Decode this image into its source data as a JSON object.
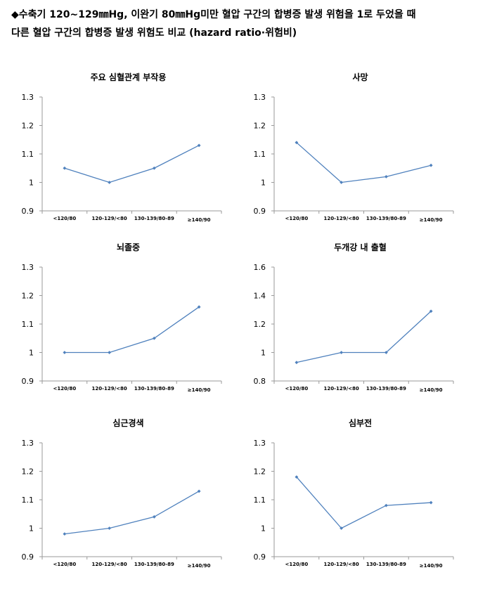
{
  "header": {
    "line1": "◆수축기 120~129㎜Hg, 이완기 80㎜Hg미만 혈압 구간의 합병증 발생 위험을 1로 두었을 때",
    "line2": "다른 혈압 구간의 합병증 발생 위험도 비교 (hazard ratio·위험비)"
  },
  "series_color": "#4f81bd",
  "chart_data": [
    {
      "type": "line",
      "title": "주요 심혈관계 부작용",
      "categories": [
        "<120/80",
        "120-129/<80",
        "130-139/80-89",
        "≥140/90"
      ],
      "values": [
        1.05,
        1.0,
        1.05,
        1.13
      ],
      "yticks": [
        "1.3",
        "1.2",
        "1.1",
        "1",
        "0.9"
      ],
      "ylim": [
        0.9,
        1.3
      ],
      "grid": false
    },
    {
      "type": "line",
      "title": "사망",
      "categories": [
        "<120/80",
        "120-129/<80",
        "130-139/80-89",
        "≥140/90"
      ],
      "values": [
        1.14,
        1.0,
        1.02,
        1.06
      ],
      "yticks": [
        "1.3",
        "1.2",
        "1.1",
        "1",
        "0.9"
      ],
      "ylim": [
        0.9,
        1.3
      ],
      "grid": false
    },
    {
      "type": "line",
      "title": "뇌졸중",
      "categories": [
        "<120/80",
        "120-129/<80",
        "130-139/80-89",
        "≥140/90"
      ],
      "values": [
        1.0,
        1.0,
        1.05,
        1.16
      ],
      "yticks": [
        "1.3",
        "1.2",
        "1.1",
        "1",
        "0.9"
      ],
      "ylim": [
        0.9,
        1.3
      ],
      "grid": false
    },
    {
      "type": "line",
      "title": "두개강 내 출혈",
      "categories": [
        "<120/80",
        "120-129/<80",
        "130-139/80-89",
        "≥140/90"
      ],
      "values": [
        0.93,
        1.0,
        1.0,
        1.29
      ],
      "yticks": [
        "1.6",
        "1.4",
        "1.2",
        "1",
        "0.8"
      ],
      "ylim": [
        0.8,
        1.6
      ],
      "grid": false
    },
    {
      "type": "line",
      "title": "심근경색",
      "categories": [
        "<120/80",
        "120-129/<80",
        "130-139/80-89",
        "≥140/90"
      ],
      "values": [
        0.98,
        1.0,
        1.04,
        1.13
      ],
      "yticks": [
        "1.3",
        "1.2",
        "1.1",
        "1",
        "0.9"
      ],
      "ylim": [
        0.9,
        1.3
      ],
      "grid": false
    },
    {
      "type": "line",
      "title": "심부전",
      "categories": [
        "<120/80",
        "120-129/<80",
        "130-139/80-89",
        "≥140/90"
      ],
      "values": [
        1.18,
        1.0,
        1.08,
        1.09
      ],
      "yticks": [
        "1.3",
        "1.2",
        "1.1",
        "1",
        "0.9"
      ],
      "ylim": [
        0.9,
        1.3
      ],
      "grid": false
    }
  ]
}
